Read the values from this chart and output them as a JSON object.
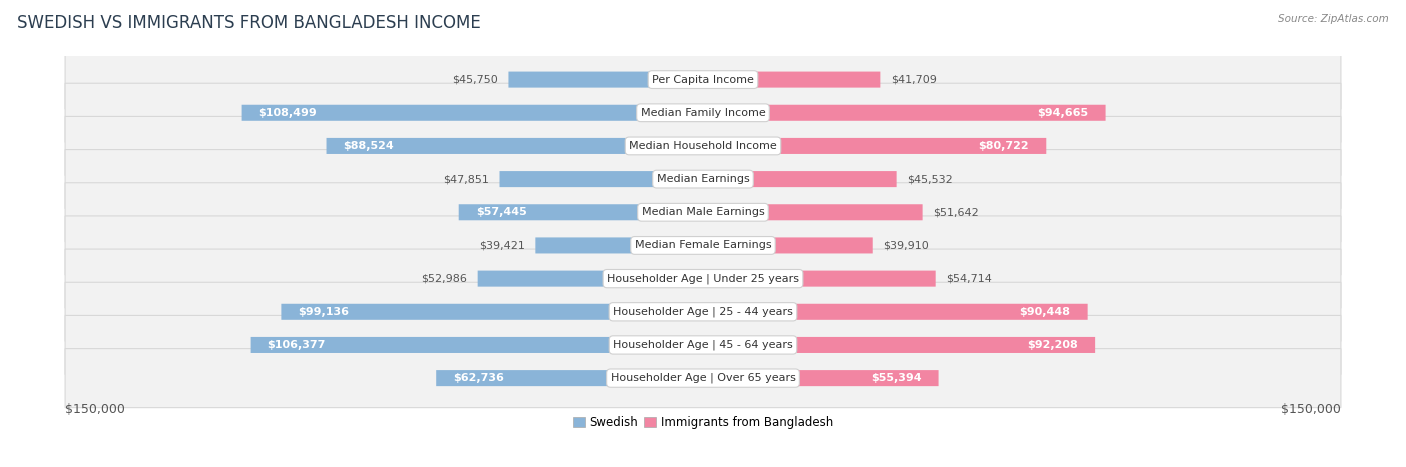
{
  "title": "SWEDISH VS IMMIGRANTS FROM BANGLADESH INCOME",
  "source": "Source: ZipAtlas.com",
  "categories": [
    "Per Capita Income",
    "Median Family Income",
    "Median Household Income",
    "Median Earnings",
    "Median Male Earnings",
    "Median Female Earnings",
    "Householder Age | Under 25 years",
    "Householder Age | 25 - 44 years",
    "Householder Age | 45 - 64 years",
    "Householder Age | Over 65 years"
  ],
  "swedish_values": [
    45750,
    108499,
    88524,
    47851,
    57445,
    39421,
    52986,
    99136,
    106377,
    62736
  ],
  "bangladesh_values": [
    41709,
    94665,
    80722,
    45532,
    51642,
    39910,
    54714,
    90448,
    92208,
    55394
  ],
  "swedish_labels": [
    "$45,750",
    "$108,499",
    "$88,524",
    "$47,851",
    "$57,445",
    "$39,421",
    "$52,986",
    "$99,136",
    "$106,377",
    "$62,736"
  ],
  "bangladesh_labels": [
    "$41,709",
    "$94,665",
    "$80,722",
    "$45,532",
    "$51,642",
    "$39,910",
    "$54,714",
    "$90,448",
    "$92,208",
    "$55,394"
  ],
  "swedish_color": "#8ab4d8",
  "bangladesh_color": "#f285a2",
  "max_val": 150000,
  "bg_color": "#ffffff",
  "row_bg": "#f2f2f2",
  "row_border": "#d8d8d8",
  "label_fontsize": 8.0,
  "cat_fontsize": 8.0,
  "title_fontsize": 12,
  "legend_swedish": "Swedish",
  "legend_bangladesh": "Immigrants from Bangladesh",
  "axis_label_left": "$150,000",
  "axis_label_right": "$150,000",
  "white_label_threshold": 55000
}
